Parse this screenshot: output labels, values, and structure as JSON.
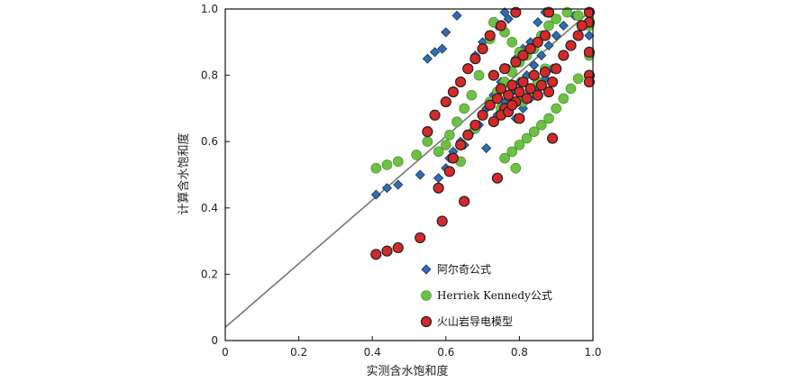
{
  "chart_data": {
    "type": "scatter",
    "title": "",
    "xlabel": "实测含水饱和度",
    "ylabel": "计算含水饱和度",
    "xlim": [
      0,
      1.0
    ],
    "ylim": [
      0,
      1.0
    ],
    "xticks": [
      "0",
      "0.2",
      "0.4",
      "0.6",
      "0.8",
      "1.0"
    ],
    "yticks": [
      "0",
      "0.2",
      "0.4",
      "0.6",
      "0.8",
      "1.0"
    ],
    "grid": false,
    "legend_position": "bottom-center",
    "reference_line": {
      "x": [
        0,
        1.0
      ],
      "y": [
        0.04,
        1.0
      ],
      "color": "#777777"
    },
    "series": [
      {
        "name": "阿尔奇公式",
        "marker": "diamond",
        "color": "#2f6db0",
        "points": [
          [
            0.41,
            0.44
          ],
          [
            0.44,
            0.46
          ],
          [
            0.47,
            0.47
          ],
          [
            0.53,
            0.5
          ],
          [
            0.55,
            0.85
          ],
          [
            0.57,
            0.87
          ],
          [
            0.59,
            0.88
          ],
          [
            0.6,
            0.93
          ],
          [
            0.63,
            0.98
          ],
          [
            0.58,
            0.49
          ],
          [
            0.6,
            0.52
          ],
          [
            0.61,
            0.55
          ],
          [
            0.62,
            0.57
          ],
          [
            0.64,
            0.6
          ],
          [
            0.66,
            0.62
          ],
          [
            0.68,
            0.86
          ],
          [
            0.7,
            0.9
          ],
          [
            0.72,
            0.92
          ],
          [
            0.74,
            0.95
          ],
          [
            0.76,
            0.99
          ],
          [
            0.77,
            0.97
          ],
          [
            0.69,
            0.65
          ],
          [
            0.71,
            0.7
          ],
          [
            0.73,
            0.74
          ],
          [
            0.75,
            0.78
          ],
          [
            0.77,
            0.82
          ],
          [
            0.79,
            0.85
          ],
          [
            0.81,
            0.88
          ],
          [
            0.83,
            0.9
          ],
          [
            0.85,
            0.96
          ],
          [
            0.87,
            0.99
          ],
          [
            0.74,
            0.68
          ],
          [
            0.76,
            0.72
          ],
          [
            0.78,
            0.75
          ],
          [
            0.8,
            0.78
          ],
          [
            0.82,
            0.8
          ],
          [
            0.84,
            0.83
          ],
          [
            0.86,
            0.86
          ],
          [
            0.88,
            0.89
          ],
          [
            0.9,
            0.92
          ],
          [
            0.92,
            0.95
          ],
          [
            0.95,
            0.98
          ],
          [
            0.99,
            0.92
          ],
          [
            0.79,
            0.67
          ],
          [
            0.81,
            0.7
          ],
          [
            0.83,
            0.73
          ],
          [
            0.85,
            0.76
          ],
          [
            0.87,
            0.79
          ],
          [
            0.89,
            0.82
          ],
          [
            0.71,
            0.58
          ],
          [
            0.65,
            0.59
          ],
          [
            0.67,
            0.63
          ]
        ]
      },
      {
        "name": "Herriek Kennedy公式",
        "marker": "circle",
        "color": "#6dbf45",
        "points": [
          [
            0.41,
            0.52
          ],
          [
            0.44,
            0.53
          ],
          [
            0.47,
            0.54
          ],
          [
            0.52,
            0.56
          ],
          [
            0.55,
            0.6
          ],
          [
            0.58,
            0.57
          ],
          [
            0.6,
            0.59
          ],
          [
            0.61,
            0.62
          ],
          [
            0.63,
            0.66
          ],
          [
            0.65,
            0.7
          ],
          [
            0.67,
            0.74
          ],
          [
            0.69,
            0.8
          ],
          [
            0.7,
            0.88
          ],
          [
            0.72,
            0.91
          ],
          [
            0.73,
            0.96
          ],
          [
            0.76,
            0.93
          ],
          [
            0.78,
            0.9
          ],
          [
            0.8,
            0.87
          ],
          [
            0.66,
            0.62
          ],
          [
            0.68,
            0.64
          ],
          [
            0.7,
            0.68
          ],
          [
            0.72,
            0.72
          ],
          [
            0.74,
            0.75
          ],
          [
            0.76,
            0.78
          ],
          [
            0.78,
            0.81
          ],
          [
            0.8,
            0.84
          ],
          [
            0.82,
            0.86
          ],
          [
            0.84,
            0.88
          ],
          [
            0.86,
            0.92
          ],
          [
            0.88,
            0.95
          ],
          [
            0.9,
            0.97
          ],
          [
            0.93,
            0.99
          ],
          [
            0.96,
            0.98
          ],
          [
            0.99,
            0.95
          ],
          [
            0.99,
            0.86
          ],
          [
            0.76,
            0.55
          ],
          [
            0.78,
            0.57
          ],
          [
            0.8,
            0.59
          ],
          [
            0.82,
            0.61
          ],
          [
            0.84,
            0.63
          ],
          [
            0.86,
            0.65
          ],
          [
            0.88,
            0.67
          ],
          [
            0.9,
            0.7
          ],
          [
            0.92,
            0.73
          ],
          [
            0.94,
            0.76
          ],
          [
            0.96,
            0.79
          ],
          [
            0.79,
            0.52
          ],
          [
            0.81,
            0.72
          ],
          [
            0.83,
            0.75
          ],
          [
            0.85,
            0.78
          ],
          [
            0.87,
            0.82
          ],
          [
            0.75,
            0.7
          ],
          [
            0.77,
            0.74
          ],
          [
            0.64,
            0.54
          ]
        ]
      },
      {
        "name": "火山岩导电模型",
        "marker": "circle",
        "color": "#d62828",
        "points": [
          [
            0.41,
            0.26
          ],
          [
            0.44,
            0.27
          ],
          [
            0.47,
            0.28
          ],
          [
            0.53,
            0.31
          ],
          [
            0.59,
            0.36
          ],
          [
            0.65,
            0.42
          ],
          [
            0.74,
            0.49
          ],
          [
            0.58,
            0.46
          ],
          [
            0.61,
            0.51
          ],
          [
            0.62,
            0.55
          ],
          [
            0.64,
            0.59
          ],
          [
            0.66,
            0.62
          ],
          [
            0.68,
            0.65
          ],
          [
            0.7,
            0.68
          ],
          [
            0.72,
            0.71
          ],
          [
            0.55,
            0.63
          ],
          [
            0.57,
            0.68
          ],
          [
            0.6,
            0.72
          ],
          [
            0.62,
            0.75
          ],
          [
            0.64,
            0.78
          ],
          [
            0.66,
            0.82
          ],
          [
            0.68,
            0.85
          ],
          [
            0.7,
            0.88
          ],
          [
            0.72,
            0.92
          ],
          [
            0.75,
            0.95
          ],
          [
            0.79,
            0.99
          ],
          [
            0.88,
            0.99
          ],
          [
            0.99,
            0.99
          ],
          [
            0.99,
            0.96
          ],
          [
            0.99,
            0.87
          ],
          [
            0.99,
            0.8
          ],
          [
            0.99,
            0.78
          ],
          [
            0.74,
            0.73
          ],
          [
            0.75,
            0.76
          ],
          [
            0.76,
            0.7
          ],
          [
            0.77,
            0.74
          ],
          [
            0.78,
            0.77
          ],
          [
            0.79,
            0.72
          ],
          [
            0.8,
            0.75
          ],
          [
            0.81,
            0.78
          ],
          [
            0.82,
            0.73
          ],
          [
            0.83,
            0.76
          ],
          [
            0.84,
            0.8
          ],
          [
            0.85,
            0.74
          ],
          [
            0.86,
            0.77
          ],
          [
            0.87,
            0.81
          ],
          [
            0.88,
            0.75
          ],
          [
            0.89,
            0.78
          ],
          [
            0.9,
            0.82
          ],
          [
            0.92,
            0.86
          ],
          [
            0.94,
            0.89
          ],
          [
            0.96,
            0.92
          ],
          [
            0.97,
            0.95
          ],
          [
            0.89,
            0.61
          ],
          [
            0.73,
            0.66
          ],
          [
            0.75,
            0.68
          ],
          [
            0.77,
            0.69
          ],
          [
            0.79,
            0.84
          ],
          [
            0.81,
            0.86
          ],
          [
            0.83,
            0.88
          ],
          [
            0.85,
            0.9
          ],
          [
            0.87,
            0.92
          ],
          [
            0.73,
            0.8
          ],
          [
            0.76,
            0.82
          ],
          [
            0.78,
            0.71
          ],
          [
            0.8,
            0.67
          ]
        ]
      }
    ]
  }
}
